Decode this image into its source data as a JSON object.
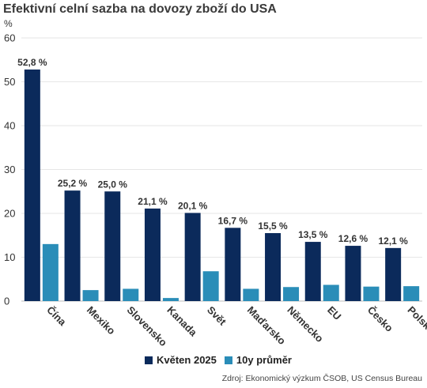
{
  "chart_data": {
    "type": "bar",
    "title": "Efektivní celní sazba na dovozy zboží do USA",
    "unit": "%",
    "ylim": [
      0,
      60
    ],
    "yticks": [
      0,
      10,
      20,
      30,
      40,
      50,
      60
    ],
    "grid": true,
    "legend_position": "bottom",
    "categories": [
      "Čína",
      "Mexiko",
      "Slovensko",
      "Kanada",
      "Svět",
      "Maďarsko",
      "Německo",
      "EU",
      "Česko",
      "Polsko"
    ],
    "series": [
      {
        "name": "Květen 2025",
        "color": "#0b2a5b",
        "values": [
          52.8,
          25.2,
          25.0,
          21.1,
          20.1,
          16.7,
          15.5,
          13.5,
          12.6,
          12.1
        ],
        "labels": [
          "52,8 %",
          "25,2 %",
          "25,0 %",
          "21,1 %",
          "20,1 %",
          "16,7 %",
          "15,5 %",
          "13,5 %",
          "12,6 %",
          "12,1 %"
        ]
      },
      {
        "name": "10y průměr",
        "color": "#2a8db8",
        "values": [
          13.0,
          2.5,
          2.8,
          0.7,
          6.8,
          2.8,
          3.2,
          3.7,
          3.3,
          3.4
        ]
      }
    ],
    "source": "Zdroj: Ekonomický výzkum ČSOB, US Census Bureau"
  }
}
